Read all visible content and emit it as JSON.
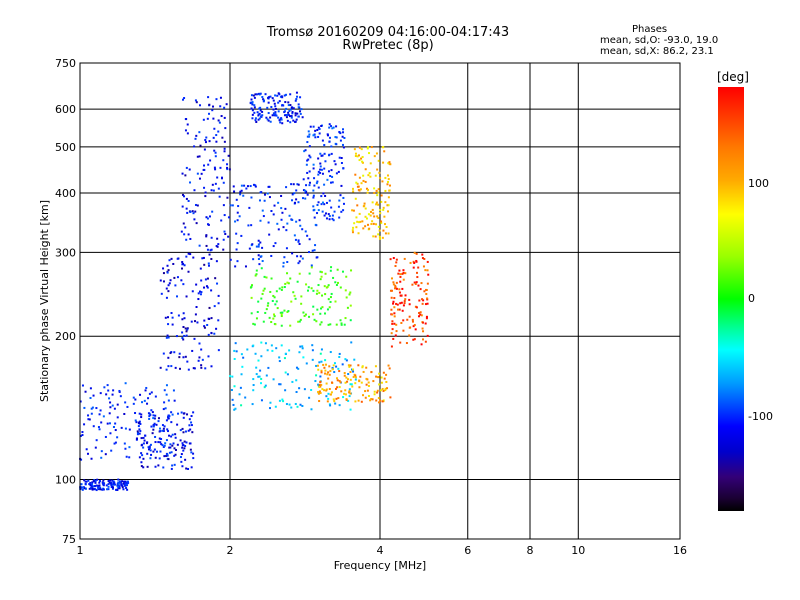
{
  "chart_data": {
    "type": "scatter",
    "title": "Tromsø 20160209 04:16:00-04:17:43",
    "subtitle": "RwPretec (8p)",
    "xlabel": "Frequency [MHz]",
    "ylabel": "Stationary phase Virtual Height [km]",
    "x_scale": "log",
    "y_scale": "log",
    "xlim": [
      1,
      16
    ],
    "ylim": [
      75,
      750
    ],
    "x_ticks": [
      1,
      2,
      4,
      6,
      8,
      10,
      16
    ],
    "x_tick_labels": [
      "1",
      "2",
      "4",
      "6",
      "8",
      "10",
      "16"
    ],
    "y_ticks": [
      75,
      100,
      200,
      300,
      400,
      500,
      600,
      750
    ],
    "y_tick_labels": [
      "75",
      "100",
      "200",
      "300",
      "400",
      "500",
      "600",
      "750"
    ],
    "grid": true,
    "phases_legend": {
      "heading": "Phases",
      "o_line": "mean, sd,O: -93.0, 19.0",
      "x_line": "mean, sd,X: 86.2, 23.1"
    },
    "colorbar": {
      "unit": "[deg]",
      "tick_labels": [
        "100",
        "0",
        "-100"
      ],
      "range": [
        -180,
        180
      ]
    },
    "clusters": [
      {
        "x": [
          1.0,
          1.25
        ],
        "y": [
          95,
          100
        ],
        "phase": -100
      },
      {
        "x": [
          1.0,
          1.55
        ],
        "y": [
          110,
          160
        ],
        "phase": -95
      },
      {
        "x": [
          1.3,
          1.7
        ],
        "y": [
          105,
          140
        ],
        "phase": -105
      },
      {
        "x": [
          1.45,
          1.9
        ],
        "y": [
          170,
          300
        ],
        "phase": -110
      },
      {
        "x": [
          1.6,
          2.0
        ],
        "y": [
          300,
          640
        ],
        "phase": -105
      },
      {
        "x": [
          2.0,
          3.0
        ],
        "y": [
          280,
          420
        ],
        "phase": -95
      },
      {
        "x": [
          2.8,
          3.4
        ],
        "y": [
          350,
          560
        ],
        "phase": -90
      },
      {
        "x": [
          2.2,
          2.8
        ],
        "y": [
          560,
          650
        ],
        "phase": -100
      },
      {
        "x": [
          3.5,
          4.2
        ],
        "y": [
          320,
          500
        ],
        "phase": 110
      },
      {
        "x": [
          2.2,
          3.5
        ],
        "y": [
          210,
          280
        ],
        "phase": 30
      },
      {
        "x": [
          2.0,
          3.6
        ],
        "y": [
          140,
          195
        ],
        "phase": -40
      },
      {
        "x": [
          3.0,
          4.2
        ],
        "y": [
          145,
          175
        ],
        "phase": 120
      },
      {
        "x": [
          4.2,
          5.0
        ],
        "y": [
          190,
          300
        ],
        "phase": 160
      }
    ]
  }
}
